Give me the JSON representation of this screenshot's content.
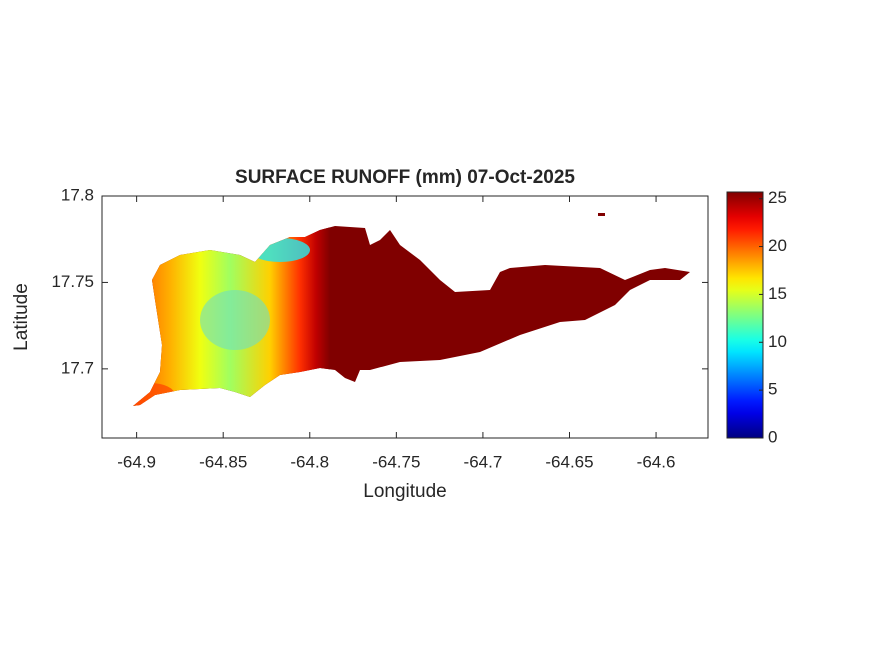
{
  "chart_data": {
    "type": "map",
    "title": "SURFACE RUNOFF (mm) 07-Oct-2025",
    "xlabel": "Longitude",
    "ylabel": "Latitude",
    "xlim": [
      -64.92,
      -64.57
    ],
    "xticks": [
      -64.9,
      -64.85,
      -64.8,
      -64.75,
      -64.7,
      -64.65,
      -64.6
    ],
    "ylim": [
      17.66,
      17.8
    ],
    "yticks": [
      17.7,
      17.75,
      17.8
    ],
    "colormap": "jet",
    "clim": [
      0,
      25.7
    ],
    "cticks": [
      0,
      5,
      10,
      15,
      20,
      25
    ]
  }
}
